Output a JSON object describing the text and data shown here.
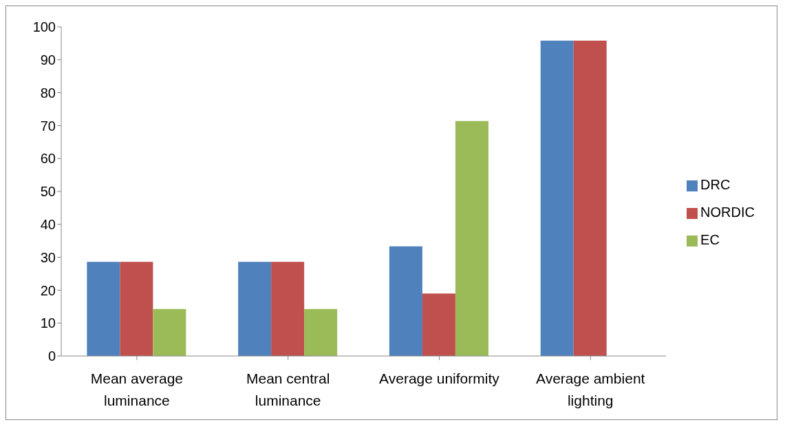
{
  "chart_data": {
    "type": "bar",
    "categories": [
      "Mean average luminance",
      "Mean central luminance",
      "Average uniformity",
      "Average ambient lighting"
    ],
    "series": [
      {
        "name": "DRC",
        "color": "#4f81bd",
        "values": [
          28.6,
          28.6,
          33.3,
          95.8
        ]
      },
      {
        "name": "NORDIC",
        "color": "#c0504d",
        "values": [
          28.6,
          28.6,
          19,
          95.8
        ]
      },
      {
        "name": "EC",
        "color": "#9bbb59",
        "values": [
          14.3,
          14.3,
          71.4,
          null
        ]
      }
    ],
    "ylim": [
      0,
      100
    ],
    "yticks": [
      0,
      10,
      20,
      30,
      40,
      50,
      60,
      70,
      80,
      90,
      100
    ],
    "grid": false,
    "legend": "right"
  }
}
